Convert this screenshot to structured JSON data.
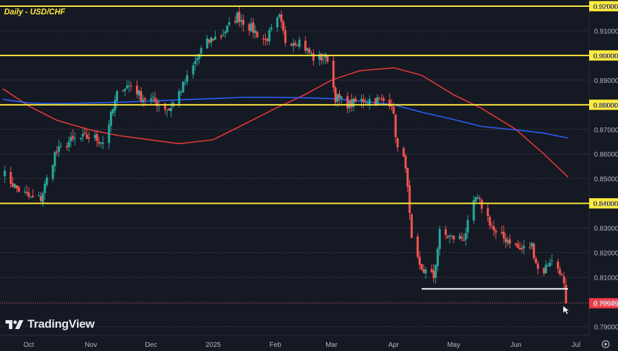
{
  "chart_data": {
    "type": "candlestick",
    "title": "Daily - USD/CHF",
    "x_ticks": [
      "Oct",
      "Nov",
      "Dec",
      "2025",
      "Feb",
      "Mar",
      "Apr",
      "May",
      "Jun",
      "Jul"
    ],
    "y_ticks": [
      "0.92000",
      "0.91000",
      "0.90000",
      "0.89000",
      "0.88000",
      "0.87000",
      "0.86000",
      "0.85000",
      "0.84000",
      "0.83000",
      "0.82000",
      "0.81000",
      "0.80000",
      "0.79000"
    ],
    "ylim": [
      0.7865,
      0.9225
    ],
    "last_price": {
      "label": "0.79949",
      "value": 0.79949
    },
    "horizontal_levels": [
      {
        "label": "0.92000",
        "value": 0.92
      },
      {
        "label": "0.90000",
        "value": 0.9
      },
      {
        "label": "0.88000",
        "value": 0.88
      },
      {
        "label": "0.84000",
        "value": 0.84
      }
    ],
    "support_line": {
      "value": 0.8053,
      "from": "Apr 15",
      "to": "Jun 27"
    },
    "series": [
      {
        "name": "",
        "type": "moving-average",
        "color": "#e53935",
        "points": [
          [
            "Sep 18",
            0.8865
          ],
          [
            "Oct 1",
            0.8795
          ],
          [
            "Oct 15",
            0.8737
          ],
          [
            "Nov 1",
            0.8697
          ],
          [
            "Nov 15",
            0.8675
          ],
          [
            "Dec 1",
            0.8657
          ],
          [
            "Dec 15",
            0.8642
          ],
          [
            "Jan 1",
            0.8658
          ],
          [
            "Jan 15",
            0.8715
          ],
          [
            "Feb 1",
            0.8785
          ],
          [
            "Feb 15",
            0.8838
          ],
          [
            "Mar 1",
            0.89
          ],
          [
            "Mar 15",
            0.8938
          ],
          [
            "Apr 1",
            0.895
          ],
          [
            "Apr 15",
            0.892
          ],
          [
            "May 1",
            0.884
          ],
          [
            "May 15",
            0.8785
          ],
          [
            "Jun 1",
            0.87
          ],
          [
            "Jun 15",
            0.86
          ],
          [
            "Jun 27",
            0.8507
          ]
        ]
      },
      {
        "name": "",
        "type": "moving-average",
        "color": "#2962ff",
        "points": [
          [
            "Sep 18",
            0.8822
          ],
          [
            "Oct 1",
            0.8807
          ],
          [
            "Oct 15",
            0.8805
          ],
          [
            "Nov 1",
            0.8807
          ],
          [
            "Nov 15",
            0.881
          ],
          [
            "Dec 1",
            0.8815
          ],
          [
            "Dec 15",
            0.882
          ],
          [
            "Jan 1",
            0.8825
          ],
          [
            "Jan 15",
            0.883
          ],
          [
            "Feb 1",
            0.883
          ],
          [
            "Feb 15",
            0.8828
          ],
          [
            "Mar 1",
            0.8825
          ],
          [
            "Mar 15",
            0.8815
          ],
          [
            "Apr 1",
            0.88
          ],
          [
            "Apr 15",
            0.877
          ],
          [
            "May 1",
            0.874
          ],
          [
            "May 15",
            0.8712
          ],
          [
            "Jun 1",
            0.8698
          ],
          [
            "Jun 15",
            0.8685
          ],
          [
            "Jun 27",
            0.8665
          ]
        ]
      }
    ],
    "anchors": [
      [
        "Sep 18",
        0.8525
      ],
      [
        "Sep 25",
        0.846
      ],
      [
        "Oct 2",
        0.842
      ],
      [
        "Oct 7",
        0.842
      ],
      [
        "Oct 14",
        0.86
      ],
      [
        "Oct 21",
        0.865
      ],
      [
        "Oct 28",
        0.8665
      ],
      [
        "Nov 1",
        0.867
      ],
      [
        "Nov 7",
        0.865
      ],
      [
        "Nov 12",
        0.878
      ],
      [
        "Nov 15",
        0.887
      ],
      [
        "Nov 22",
        0.888
      ],
      [
        "Nov 26",
        0.883
      ],
      [
        "Dec 1",
        0.882
      ],
      [
        "Dec 6",
        0.88
      ],
      [
        "Dec 10",
        0.878
      ],
      [
        "Dec 15",
        0.885
      ],
      [
        "Dec 20",
        0.892
      ],
      [
        "Dec 27",
        0.904
      ],
      [
        "Jan 1",
        0.907
      ],
      [
        "Jan 5",
        0.908
      ],
      [
        "Jan 13",
        0.916
      ],
      [
        "Jan 20",
        0.911
      ],
      [
        "Jan 27",
        0.906
      ],
      [
        "Feb 3",
        0.915
      ],
      [
        "Feb 6",
        0.906
      ],
      [
        "Feb 13",
        0.906
      ],
      [
        "Feb 20",
        0.899
      ],
      [
        "Feb 27",
        0.899
      ],
      [
        "Mar 3",
        0.883
      ],
      [
        "Mar 10",
        0.88
      ],
      [
        "Mar 17",
        0.882
      ],
      [
        "Mar 24",
        0.882
      ],
      [
        "Mar 31",
        0.881
      ],
      [
        "Apr 3",
        0.862
      ],
      [
        "Apr 7",
        0.856
      ],
      [
        "Apr 10",
        0.824
      ],
      [
        "Apr 14",
        0.814
      ],
      [
        "Apr 21",
        0.81
      ],
      [
        "Apr 24",
        0.828
      ],
      [
        "Apr 30",
        0.826
      ],
      [
        "May 6",
        0.826
      ],
      [
        "May 12",
        0.842
      ],
      [
        "May 16",
        0.838
      ],
      [
        "May 22",
        0.827
      ],
      [
        "May 29",
        0.825
      ],
      [
        "Jun 3",
        0.821
      ],
      [
        "Jun 9",
        0.823
      ],
      [
        "Jun 13",
        0.81
      ],
      [
        "Jun 18",
        0.817
      ],
      [
        "Jun 23",
        0.813
      ],
      [
        "Jun 27",
        0.7995
      ]
    ]
  },
  "branding": {
    "name": "TradingView"
  },
  "icons": {
    "settings": "settings-gear-icon",
    "cursor": "mouse-pointer-icon"
  },
  "colors": {
    "background": "#151924",
    "up": "#26a69a",
    "down": "#ef5350",
    "level_line": "#ffeb3b",
    "support_line": "#ffffff",
    "axis_text": "#b2b5be",
    "price_tag_bg": "#f23645"
  }
}
